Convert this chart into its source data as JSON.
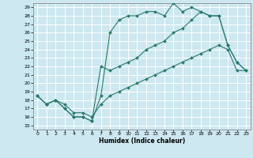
{
  "title": "",
  "xlabel": "Humidex (Indice chaleur)",
  "bg_color": "#cde8f0",
  "grid_color": "#ffffff",
  "line_color": "#2a7a6b",
  "xlim": [
    -0.5,
    23.5
  ],
  "ylim": [
    14.5,
    29.5
  ],
  "xticks": [
    0,
    1,
    2,
    3,
    4,
    5,
    6,
    7,
    8,
    9,
    10,
    11,
    12,
    13,
    14,
    15,
    16,
    17,
    18,
    19,
    20,
    21,
    22,
    23
  ],
  "yticks": [
    15,
    16,
    17,
    18,
    19,
    20,
    21,
    22,
    23,
    24,
    25,
    26,
    27,
    28,
    29
  ],
  "line1_x": [
    0,
    1,
    2,
    3,
    4,
    5,
    6,
    7,
    8,
    9,
    10,
    11,
    12,
    13,
    14,
    15,
    16,
    17,
    18,
    19,
    20,
    21,
    22,
    23
  ],
  "line1_y": [
    18.5,
    17.5,
    18.0,
    17.0,
    16.0,
    16.0,
    15.5,
    18.5,
    26.0,
    27.5,
    28.0,
    28.0,
    28.5,
    28.5,
    28.0,
    29.5,
    28.5,
    29.0,
    28.5,
    28.0,
    28.0,
    24.5,
    22.5,
    21.5
  ],
  "line2_x": [
    0,
    1,
    2,
    3,
    4,
    5,
    6,
    7,
    8,
    9,
    10,
    11,
    12,
    13,
    14,
    15,
    16,
    17,
    18,
    19,
    20,
    21,
    22,
    23
  ],
  "line2_y": [
    18.5,
    17.5,
    18.0,
    17.0,
    16.0,
    16.0,
    15.5,
    22.0,
    21.5,
    22.0,
    22.5,
    23.0,
    24.0,
    24.5,
    25.0,
    26.0,
    26.5,
    27.5,
    28.5,
    28.0,
    28.0,
    24.5,
    22.5,
    21.5
  ],
  "line3_x": [
    0,
    1,
    2,
    3,
    4,
    5,
    6,
    7,
    8,
    9,
    10,
    11,
    12,
    13,
    14,
    15,
    16,
    17,
    18,
    19,
    20,
    21,
    22,
    23
  ],
  "line3_y": [
    18.5,
    17.5,
    18.0,
    17.5,
    16.5,
    16.5,
    16.0,
    17.5,
    18.5,
    19.0,
    19.5,
    20.0,
    20.5,
    21.0,
    21.5,
    22.0,
    22.5,
    23.0,
    23.5,
    24.0,
    24.5,
    24.0,
    21.5,
    21.5
  ],
  "marker_size": 2.0,
  "linewidth": 0.8,
  "tick_fontsize": 4.5,
  "xlabel_fontsize": 5.5
}
